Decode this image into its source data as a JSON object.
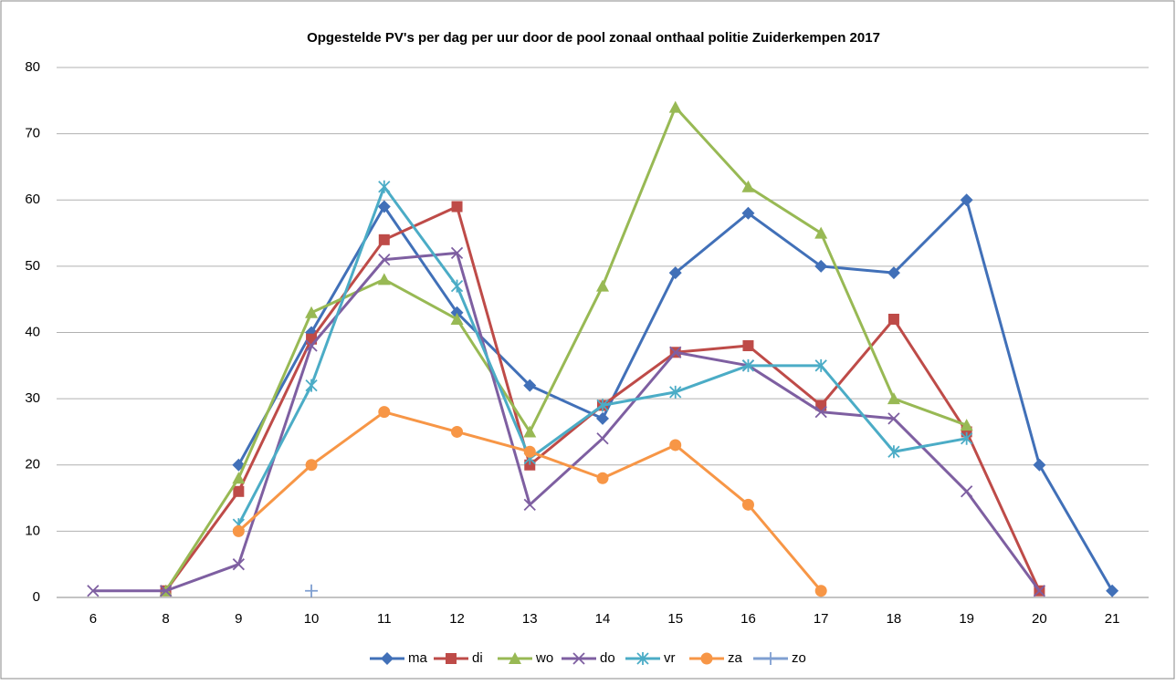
{
  "chart_data": {
    "type": "line",
    "title": "Opgestelde PV's per dag per uur door de pool zonaal onthaal politie Zuiderkempen 2017",
    "categories": [
      "6",
      "8",
      "9",
      "10",
      "11",
      "12",
      "13",
      "14",
      "15",
      "16",
      "17",
      "18",
      "19",
      "20",
      "21"
    ],
    "series": [
      {
        "name": "ma",
        "color": "#4170b8",
        "marker": "diamond",
        "values": [
          null,
          null,
          20,
          40,
          59,
          43,
          32,
          27,
          49,
          58,
          50,
          49,
          60,
          20,
          1
        ]
      },
      {
        "name": "di",
        "color": "#be4b48",
        "marker": "square",
        "values": [
          null,
          1,
          16,
          39,
          54,
          59,
          20,
          29,
          37,
          38,
          29,
          42,
          25,
          1,
          null
        ]
      },
      {
        "name": "wo",
        "color": "#98b954",
        "marker": "triangle",
        "values": [
          null,
          1,
          18,
          43,
          48,
          42,
          25,
          47,
          74,
          62,
          55,
          30,
          26,
          null,
          null
        ]
      },
      {
        "name": "do",
        "color": "#7e5fa1",
        "marker": "x",
        "values": [
          1,
          1,
          5,
          38,
          51,
          52,
          14,
          24,
          37,
          35,
          28,
          27,
          16,
          1,
          null
        ]
      },
      {
        "name": "vr",
        "color": "#4bacc6",
        "marker": "star",
        "values": [
          null,
          null,
          11,
          32,
          62,
          47,
          21,
          29,
          31,
          35,
          35,
          22,
          24,
          null,
          null
        ]
      },
      {
        "name": "za",
        "color": "#f79646",
        "marker": "circle",
        "values": [
          null,
          null,
          10,
          20,
          28,
          25,
          22,
          18,
          23,
          14,
          1,
          null,
          null,
          null,
          null
        ]
      },
      {
        "name": "zo",
        "color": "#7f9fd1",
        "marker": "plus",
        "values": [
          null,
          null,
          null,
          1,
          null,
          null,
          null,
          null,
          null,
          null,
          null,
          null,
          null,
          null,
          null
        ]
      }
    ],
    "ylim": [
      0,
      80
    ],
    "yticks": [
      0,
      10,
      20,
      30,
      40,
      50,
      60,
      70,
      80
    ],
    "grid": true,
    "legend": "bottom"
  }
}
